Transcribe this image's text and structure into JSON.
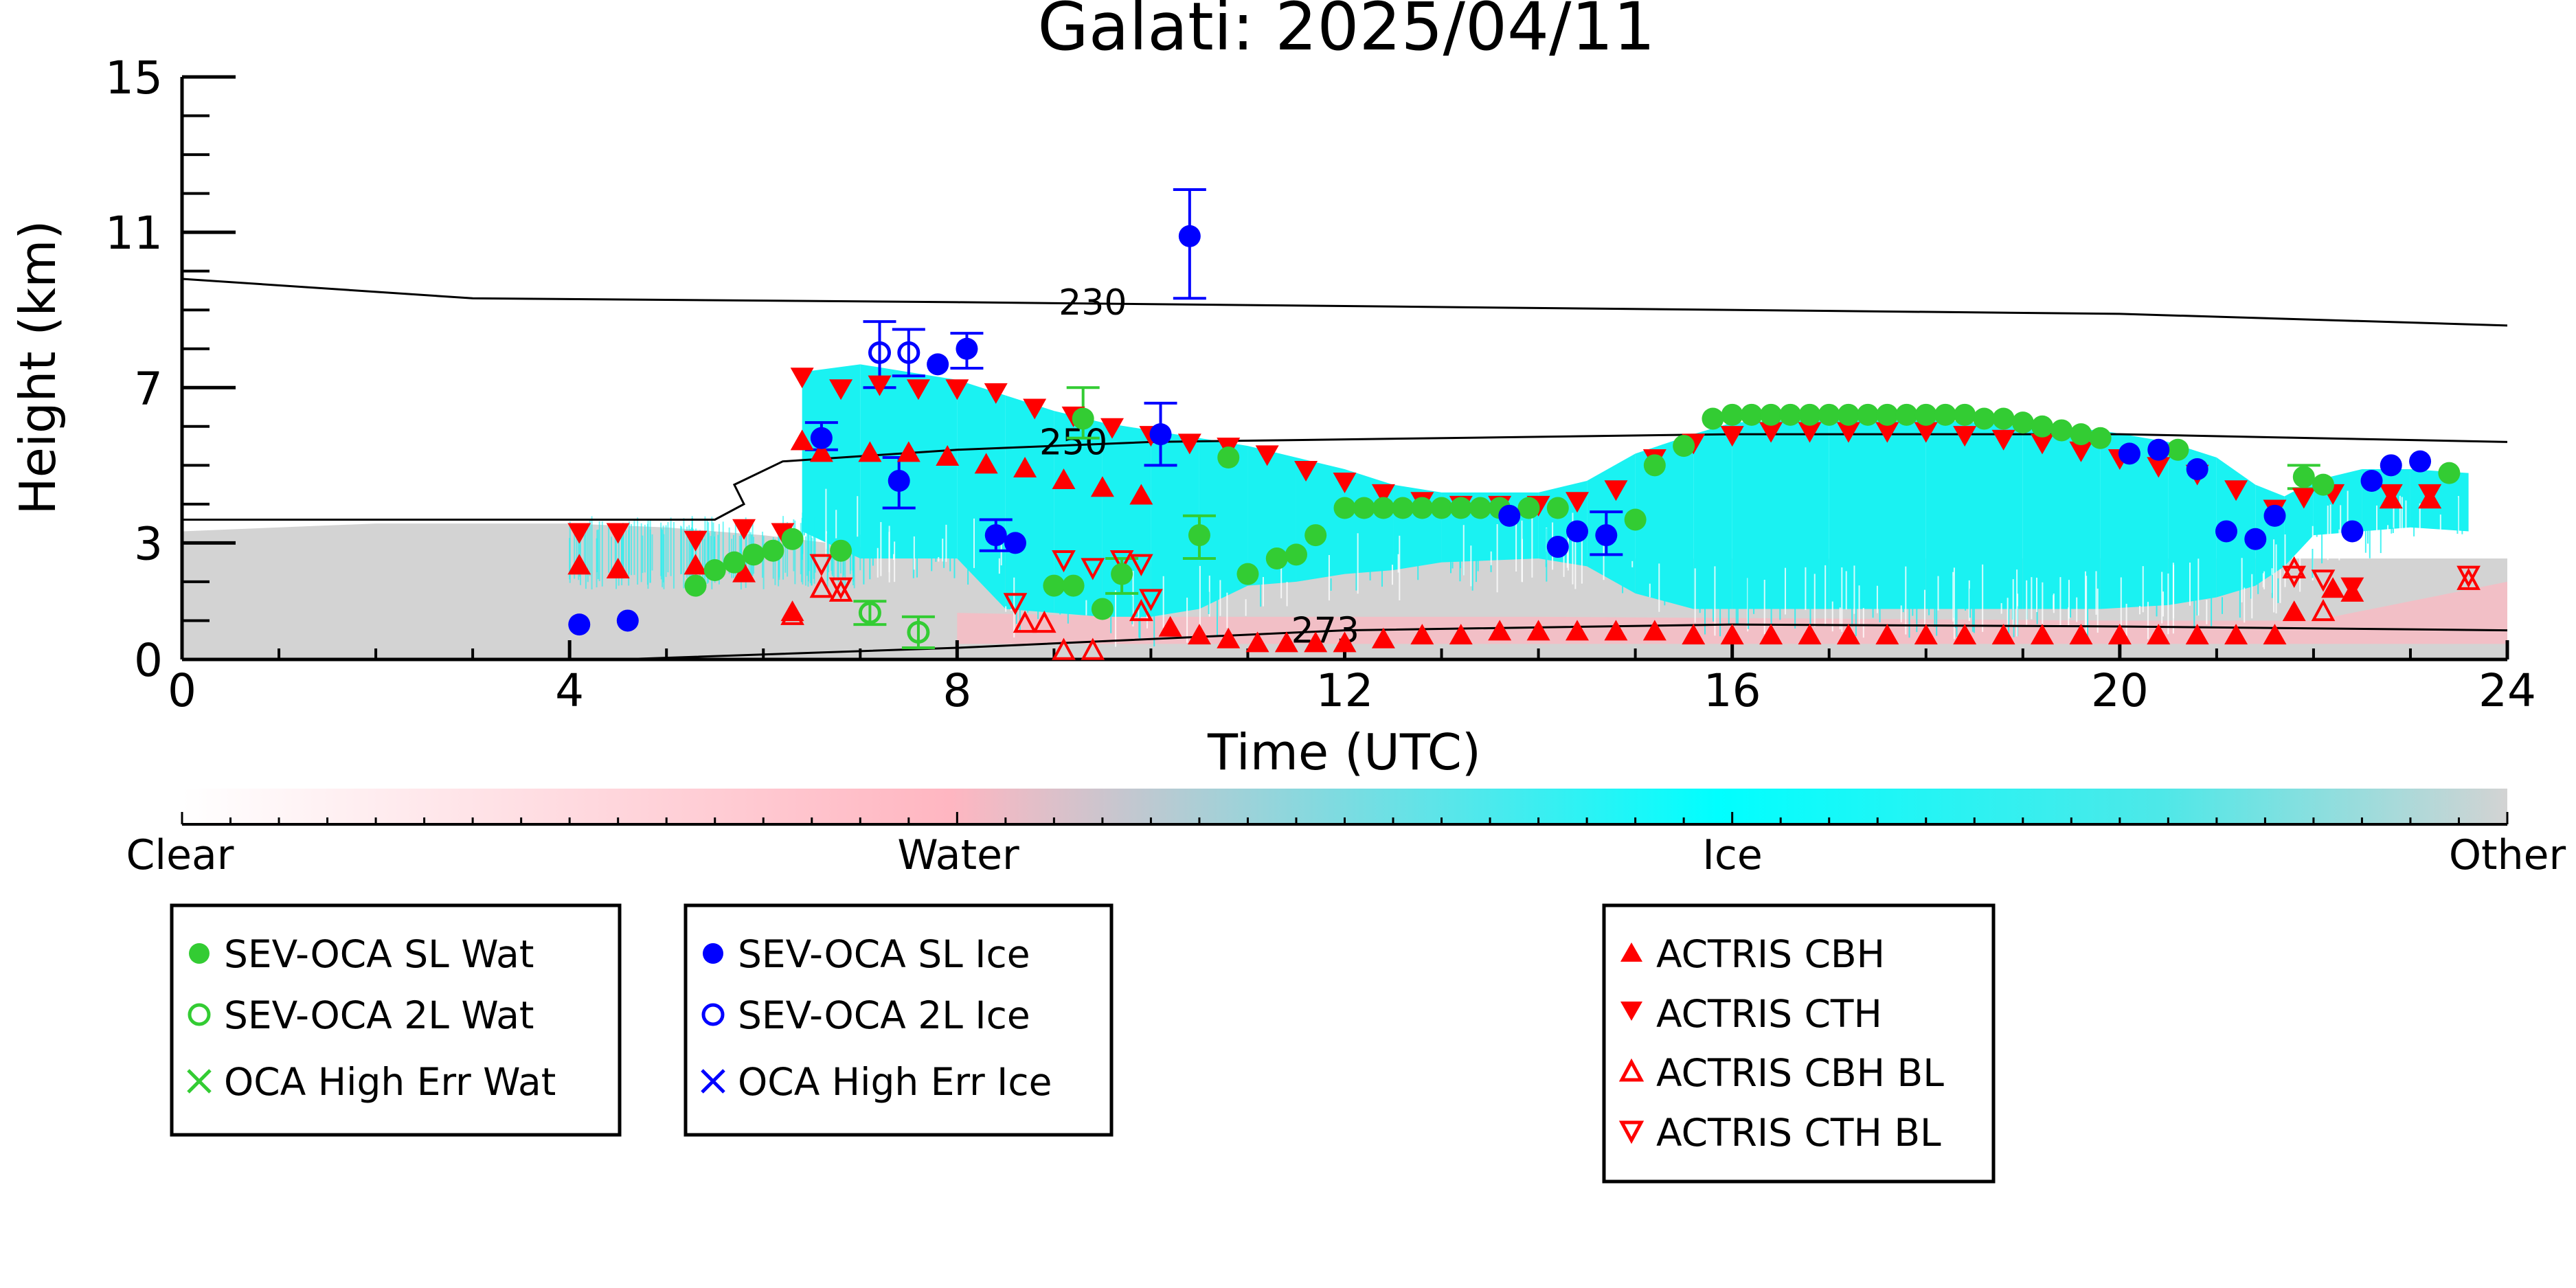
{
  "chart_data": {
    "type": "scatter",
    "title": "Galati: 2025/04/11",
    "xlabel": "Time (UTC)",
    "ylabel": "Height (km)",
    "xlim": [
      0,
      24
    ],
    "ylim": [
      0,
      15
    ],
    "x_ticks": [
      "0",
      "4",
      "8",
      "12",
      "16",
      "20",
      "24"
    ],
    "y_ticks": [
      "0",
      "3",
      "7",
      "11",
      "15"
    ],
    "contours": [
      {
        "label": "230",
        "points": [
          [
            0,
            9.8
          ],
          [
            3,
            9.3
          ],
          [
            8,
            9.2
          ],
          [
            12,
            9.1
          ],
          [
            20,
            8.9
          ],
          [
            24,
            8.6
          ]
        ]
      },
      {
        "label": "250",
        "points": [
          [
            0,
            3.6
          ],
          [
            5.5,
            3.6
          ],
          [
            5.8,
            4.0
          ],
          [
            5.7,
            4.5
          ],
          [
            6.2,
            5.1
          ],
          [
            8,
            5.4
          ],
          [
            10,
            5.6
          ],
          [
            16,
            5.8
          ],
          [
            20,
            5.8
          ],
          [
            24,
            5.6
          ]
        ]
      },
      {
        "label": "273",
        "points": [
          [
            4.5,
            0.0
          ],
          [
            8,
            0.3
          ],
          [
            12,
            0.75
          ],
          [
            16,
            0.9
          ],
          [
            20,
            0.85
          ],
          [
            24,
            0.75
          ]
        ]
      }
    ],
    "colorbar": {
      "labels": [
        "Clear",
        "Water",
        "Ice",
        "Other"
      ],
      "colors": [
        "#ffffff",
        "#ffb6c1",
        "#00ffff",
        "#d3d3d3"
      ]
    },
    "colors": {
      "wat": "#33cc33",
      "ice": "#0000ff",
      "actris": "#ff0000",
      "ice_cloud": "#1af2f2",
      "other_bg": "#d3d3d3",
      "water_pink": "#ffb6c1"
    },
    "series": [
      {
        "name": "SEV-OCA SL Wat",
        "marker": "filled-circle",
        "color": "#33cc33",
        "points": [
          [
            5.3,
            1.9
          ],
          [
            5.5,
            2.3
          ],
          [
            5.7,
            2.5
          ],
          [
            5.9,
            2.7
          ],
          [
            6.1,
            2.8
          ],
          [
            6.3,
            3.1
          ],
          [
            6.8,
            2.8
          ],
          [
            9.3,
            6.2
          ],
          [
            9.0,
            1.9
          ],
          [
            9.2,
            1.9
          ],
          [
            9.5,
            1.3
          ],
          [
            9.7,
            2.2
          ],
          [
            10.5,
            3.2
          ],
          [
            10.8,
            5.2
          ],
          [
            11.0,
            2.2
          ],
          [
            11.3,
            2.6
          ],
          [
            11.5,
            2.7
          ],
          [
            11.7,
            3.2
          ],
          [
            12.0,
            3.9
          ],
          [
            12.2,
            3.9
          ],
          [
            12.4,
            3.9
          ],
          [
            12.6,
            3.9
          ],
          [
            12.8,
            3.9
          ],
          [
            13.0,
            3.9
          ],
          [
            13.2,
            3.9
          ],
          [
            13.4,
            3.9
          ],
          [
            13.6,
            3.9
          ],
          [
            13.9,
            3.9
          ],
          [
            14.2,
            3.9
          ],
          [
            15.0,
            3.6
          ],
          [
            15.2,
            5.0
          ],
          [
            15.5,
            5.5
          ],
          [
            15.8,
            6.2
          ],
          [
            16.0,
            6.3
          ],
          [
            16.2,
            6.3
          ],
          [
            16.4,
            6.3
          ],
          [
            16.6,
            6.3
          ],
          [
            16.8,
            6.3
          ],
          [
            17.0,
            6.3
          ],
          [
            17.2,
            6.3
          ],
          [
            17.4,
            6.3
          ],
          [
            17.6,
            6.3
          ],
          [
            17.8,
            6.3
          ],
          [
            18.0,
            6.3
          ],
          [
            18.2,
            6.3
          ],
          [
            18.4,
            6.3
          ],
          [
            18.6,
            6.2
          ],
          [
            18.8,
            6.2
          ],
          [
            19.0,
            6.1
          ],
          [
            19.2,
            6.0
          ],
          [
            19.4,
            5.9
          ],
          [
            19.6,
            5.8
          ],
          [
            19.8,
            5.7
          ],
          [
            20.6,
            5.4
          ],
          [
            21.9,
            4.7
          ],
          [
            22.1,
            4.5
          ],
          [
            23.4,
            4.8
          ]
        ]
      },
      {
        "name": "SEV-OCA 2L Wat",
        "marker": "open-circle",
        "color": "#33cc33",
        "points": [
          [
            7.1,
            1.2
          ],
          [
            7.6,
            0.7
          ]
        ]
      },
      {
        "name": "OCA High Err Wat",
        "marker": "x",
        "color": "#33cc33",
        "points": []
      },
      {
        "name": "SEV-OCA SL Ice",
        "marker": "filled-circle",
        "color": "#0000ff",
        "points": [
          [
            4.1,
            0.9
          ],
          [
            4.6,
            1.0
          ],
          [
            6.6,
            5.7
          ],
          [
            7.4,
            4.6
          ],
          [
            7.8,
            7.6
          ],
          [
            8.1,
            8.0
          ],
          [
            8.4,
            3.2
          ],
          [
            8.6,
            3.0
          ],
          [
            10.1,
            5.8
          ],
          [
            10.4,
            10.9
          ],
          [
            13.7,
            3.7
          ],
          [
            14.2,
            2.9
          ],
          [
            14.4,
            3.3
          ],
          [
            14.7,
            3.2
          ],
          [
            20.1,
            5.3
          ],
          [
            20.4,
            5.4
          ],
          [
            20.8,
            4.9
          ],
          [
            21.1,
            3.3
          ],
          [
            21.4,
            3.1
          ],
          [
            21.6,
            3.7
          ],
          [
            22.4,
            3.3
          ],
          [
            22.6,
            4.6
          ],
          [
            22.8,
            5.0
          ],
          [
            23.1,
            5.1
          ]
        ]
      },
      {
        "name": "SEV-OCA 2L Ice",
        "marker": "open-circle",
        "color": "#0000ff",
        "points": [
          [
            7.2,
            7.9
          ],
          [
            7.5,
            7.9
          ]
        ]
      },
      {
        "name": "OCA High Err Ice",
        "marker": "x",
        "color": "#0000ff",
        "points": []
      },
      {
        "name": "ACTRIS CBH",
        "marker": "triangle-up",
        "color": "#ff0000",
        "points": [
          [
            4.1,
            2.4
          ],
          [
            4.5,
            2.3
          ],
          [
            5.3,
            2.4
          ],
          [
            5.8,
            2.2
          ],
          [
            6.3,
            1.2
          ],
          [
            6.4,
            5.6
          ],
          [
            6.6,
            5.3
          ],
          [
            7.1,
            5.3
          ],
          [
            7.5,
            5.3
          ],
          [
            7.9,
            5.2
          ],
          [
            8.3,
            5.0
          ],
          [
            8.7,
            4.9
          ],
          [
            9.1,
            4.6
          ],
          [
            9.5,
            4.4
          ],
          [
            9.9,
            4.2
          ],
          [
            10.2,
            0.8
          ],
          [
            10.5,
            0.6
          ],
          [
            10.8,
            0.5
          ],
          [
            11.1,
            0.4
          ],
          [
            11.4,
            0.4
          ],
          [
            11.7,
            0.4
          ],
          [
            12.0,
            0.4
          ],
          [
            12.4,
            0.5
          ],
          [
            12.8,
            0.6
          ],
          [
            13.2,
            0.6
          ],
          [
            13.6,
            0.7
          ],
          [
            14.0,
            0.7
          ],
          [
            14.4,
            0.7
          ],
          [
            14.8,
            0.7
          ],
          [
            15.2,
            0.7
          ],
          [
            15.6,
            0.6
          ],
          [
            16.0,
            0.6
          ],
          [
            16.4,
            0.6
          ],
          [
            16.8,
            0.6
          ],
          [
            17.2,
            0.6
          ],
          [
            17.6,
            0.6
          ],
          [
            18.0,
            0.6
          ],
          [
            18.4,
            0.6
          ],
          [
            18.8,
            0.6
          ],
          [
            19.2,
            0.6
          ],
          [
            19.6,
            0.6
          ],
          [
            20.0,
            0.6
          ],
          [
            20.4,
            0.6
          ],
          [
            20.8,
            0.6
          ],
          [
            21.2,
            0.6
          ],
          [
            21.6,
            0.6
          ],
          [
            21.8,
            1.2
          ],
          [
            22.2,
            1.8
          ],
          [
            22.4,
            1.7
          ],
          [
            22.8,
            4.1
          ],
          [
            23.2,
            4.1
          ]
        ]
      },
      {
        "name": "ACTRIS CTH",
        "marker": "triangle-down",
        "color": "#ff0000",
        "points": [
          [
            4.1,
            3.3
          ],
          [
            4.5,
            3.3
          ],
          [
            5.3,
            3.1
          ],
          [
            5.8,
            3.4
          ],
          [
            6.2,
            3.3
          ],
          [
            6.4,
            7.3
          ],
          [
            6.8,
            7.0
          ],
          [
            7.2,
            7.1
          ],
          [
            7.6,
            7.0
          ],
          [
            8.0,
            7.0
          ],
          [
            8.4,
            6.9
          ],
          [
            8.8,
            6.5
          ],
          [
            9.2,
            6.3
          ],
          [
            9.6,
            6.0
          ],
          [
            10.0,
            5.8
          ],
          [
            10.4,
            5.6
          ],
          [
            10.8,
            5.5
          ],
          [
            11.2,
            5.3
          ],
          [
            11.6,
            4.9
          ],
          [
            12.0,
            4.6
          ],
          [
            12.4,
            4.3
          ],
          [
            12.8,
            4.1
          ],
          [
            13.2,
            4.0
          ],
          [
            13.6,
            4.0
          ],
          [
            14.0,
            4.0
          ],
          [
            14.4,
            4.1
          ],
          [
            14.8,
            4.4
          ],
          [
            15.2,
            5.2
          ],
          [
            15.6,
            5.6
          ],
          [
            16.0,
            5.8
          ],
          [
            16.4,
            5.9
          ],
          [
            16.8,
            5.9
          ],
          [
            17.2,
            5.9
          ],
          [
            17.6,
            5.9
          ],
          [
            18.0,
            5.9
          ],
          [
            18.4,
            5.8
          ],
          [
            18.8,
            5.7
          ],
          [
            19.2,
            5.6
          ],
          [
            19.6,
            5.4
          ],
          [
            20.0,
            5.2
          ],
          [
            20.4,
            5.0
          ],
          [
            20.8,
            4.8
          ],
          [
            21.2,
            4.4
          ],
          [
            21.6,
            3.9
          ],
          [
            21.9,
            4.2
          ],
          [
            22.2,
            4.3
          ],
          [
            22.4,
            1.9
          ],
          [
            22.8,
            4.3
          ],
          [
            23.2,
            4.3
          ]
        ]
      },
      {
        "name": "ACTRIS CBH BL",
        "marker": "open-triangle-up",
        "color": "#ff0000",
        "points": [
          [
            6.3,
            1.1
          ],
          [
            6.6,
            1.8
          ],
          [
            6.8,
            1.7
          ],
          [
            8.7,
            0.9
          ],
          [
            8.9,
            0.9
          ],
          [
            9.1,
            0.2
          ],
          [
            9.4,
            0.2
          ],
          [
            9.9,
            1.2
          ],
          [
            21.8,
            2.3
          ],
          [
            22.1,
            1.2
          ],
          [
            23.6,
            2.0
          ]
        ]
      },
      {
        "name": "ACTRIS CTH BL",
        "marker": "open-triangle-down",
        "color": "#ff0000",
        "points": [
          [
            6.6,
            2.5
          ],
          [
            6.8,
            1.9
          ],
          [
            8.6,
            1.5
          ],
          [
            9.1,
            2.6
          ],
          [
            9.4,
            2.4
          ],
          [
            9.7,
            2.6
          ],
          [
            9.9,
            2.5
          ],
          [
            10.0,
            1.6
          ],
          [
            21.8,
            2.2
          ],
          [
            22.1,
            2.1
          ],
          [
            23.6,
            2.2
          ]
        ]
      }
    ],
    "error_bars": {
      "SEV-OCA SL Ice": [
        [
          10.4,
          9.3,
          12.1
        ],
        [
          6.6,
          5.4,
          6.1
        ],
        [
          7.4,
          3.9,
          5.2
        ],
        [
          8.4,
          2.8,
          3.6
        ],
        [
          10.1,
          5.0,
          6.6
        ],
        [
          7.2,
          7.0,
          8.7
        ],
        [
          7.5,
          7.3,
          8.5
        ],
        [
          8.1,
          7.5,
          8.4
        ],
        [
          14.7,
          2.7,
          3.8
        ]
      ],
      "SEV-OCA SL Wat": [
        [
          9.3,
          5.7,
          7.0
        ],
        [
          10.5,
          2.6,
          3.7
        ],
        [
          9.7,
          1.7,
          2.6
        ],
        [
          21.9,
          4.4,
          5.0
        ]
      ],
      "SEV-OCA 2L Wat": [
        [
          7.1,
          0.9,
          1.5
        ],
        [
          7.6,
          0.3,
          1.1
        ]
      ]
    },
    "legend_groups": [
      [
        "SEV-OCA SL Wat",
        "SEV-OCA 2L Wat",
        "OCA High Err Wat"
      ],
      [
        "SEV-OCA SL Ice",
        "SEV-OCA 2L Ice",
        "OCA High Err Ice"
      ],
      [
        "ACTRIS CBH",
        "ACTRIS CTH",
        "ACTRIS CBH BL",
        "ACTRIS CTH BL"
      ]
    ]
  }
}
